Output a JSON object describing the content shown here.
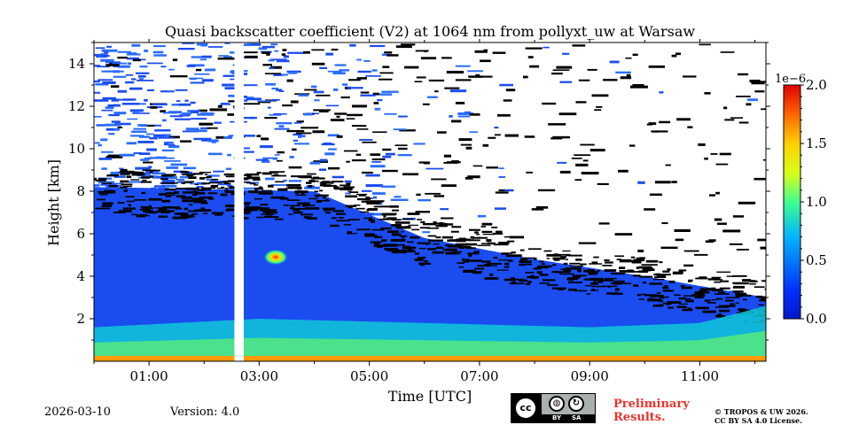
{
  "chart_data": {
    "type": "heatmap",
    "title": "Quasi backscatter coefficient (V2) at 1064 nm from pollyxt_uw at Warsaw",
    "xlabel": "Time [UTC]",
    "ylabel": "Height [km]",
    "xlim": [
      0.0,
      12.2
    ],
    "ylim": [
      0,
      15
    ],
    "x_ticks": [
      {
        "value": 1,
        "label": "01:00"
      },
      {
        "value": 3,
        "label": "03:00"
      },
      {
        "value": 5,
        "label": "05:00"
      },
      {
        "value": 7,
        "label": "07:00"
      },
      {
        "value": 9,
        "label": "09:00"
      },
      {
        "value": 11,
        "label": "11:00"
      }
    ],
    "y_ticks": [
      {
        "value": 2,
        "label": "2"
      },
      {
        "value": 4,
        "label": "4"
      },
      {
        "value": 6,
        "label": "6"
      },
      {
        "value": 8,
        "label": "8"
      },
      {
        "value": 10,
        "label": "10"
      },
      {
        "value": 12,
        "label": "12"
      },
      {
        "value": 14,
        "label": "14"
      }
    ],
    "colorbar": {
      "exponent_label": "1e−6",
      "range": [
        0.0,
        2.0
      ],
      "ticks": [
        {
          "value": 0.0,
          "label": "0.0"
        },
        {
          "value": 0.5,
          "label": "0.5"
        },
        {
          "value": 1.0,
          "label": "1.0"
        },
        {
          "value": 1.5,
          "label": "1.5"
        },
        {
          "value": 2.0,
          "label": "2.0"
        }
      ],
      "colormap": "jet"
    },
    "data_gap_hours": [
      2.55,
      2.72
    ],
    "features": {
      "aerosol_layer_top_km": {
        "times": [
          0,
          4,
          6,
          8,
          10,
          12.2
        ],
        "heights": [
          8.2,
          8.0,
          5.8,
          4.8,
          4.0,
          3.0
        ]
      },
      "boundary_layer_km": {
        "times": [
          0,
          3,
          6,
          9,
          11,
          12.2
        ],
        "heights": [
          1.6,
          2.0,
          1.8,
          1.6,
          1.8,
          2.6
        ]
      },
      "elevated_patch": {
        "time": 3.3,
        "height_km": 4.9,
        "value": 1.4
      }
    }
  },
  "footer": {
    "date": "2026-03-10",
    "version": "Version: 4.0",
    "preliminary": "Preliminary Results.",
    "copyright_line1": "© TROPOS & UW 2026.",
    "copyright_line2": "CC BY SA 4.0 License.",
    "cc_logo": {
      "cc": "cc",
      "by": "BY",
      "sa": "SA"
    }
  }
}
